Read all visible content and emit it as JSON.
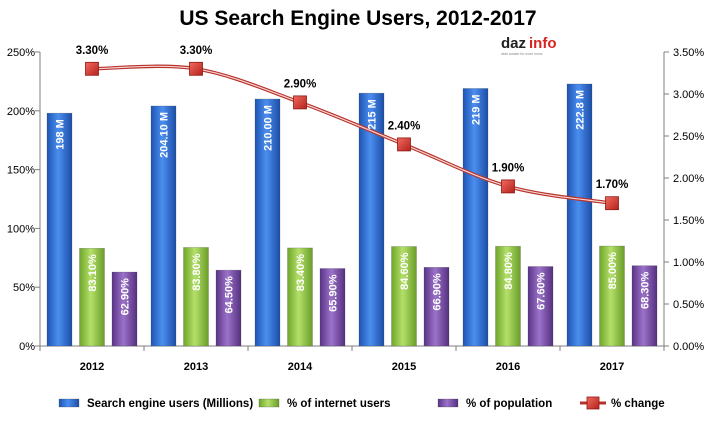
{
  "chart_data": {
    "type": "bar",
    "title": "US Search Engine Users, 2012-2017",
    "categories": [
      "2012",
      "2013",
      "2014",
      "2015",
      "2016",
      "2017"
    ],
    "series": [
      {
        "name": "Search engine users (Millions)",
        "axis": "left",
        "values": [
          198,
          204.1,
          210.0,
          215,
          219,
          222.8
        ],
        "labels": [
          "198 M",
          "204.10 M",
          "210.00 M",
          "215 M",
          "219 M",
          "222.8 M"
        ],
        "color": "#2e6fd0"
      },
      {
        "name": "% of internet users",
        "axis": "left",
        "values": [
          83.1,
          83.8,
          83.4,
          84.6,
          84.8,
          85.0
        ],
        "labels": [
          "83.10%",
          "83.80%",
          "83.40%",
          "84.60%",
          "84.80%",
          "85.00%"
        ],
        "color": "#8cc43c"
      },
      {
        "name": "% of population",
        "axis": "left",
        "values": [
          62.9,
          64.5,
          65.9,
          66.9,
          67.6,
          68.3
        ],
        "labels": [
          "62.90%",
          "64.50%",
          "65.90%",
          "66.90%",
          "67.60%",
          "68.30%"
        ],
        "color": "#7a4fa8"
      }
    ],
    "line_series": {
      "name": "% change",
      "axis": "right",
      "type": "line",
      "values": [
        3.3,
        3.3,
        2.9,
        2.4,
        1.9,
        1.7
      ],
      "labels": [
        "3.30%",
        "3.30%",
        "2.90%",
        "2.40%",
        "1.90%",
        "1.70%"
      ],
      "color": "#d9322e"
    },
    "y_left": {
      "ylim": [
        0,
        250
      ],
      "ticks": [
        0,
        50,
        100,
        150,
        200,
        250
      ],
      "tick_labels": [
        "0%",
        "50%",
        "100%",
        "150%",
        "200%",
        "250%"
      ]
    },
    "y_right": {
      "ylim": [
        0,
        3.5
      ],
      "ticks": [
        0,
        0.5,
        1.0,
        1.5,
        2.0,
        2.5,
        3.0,
        3.5
      ],
      "tick_labels": [
        "0.00%",
        "0.50%",
        "1.00%",
        "1.50%",
        "2.00%",
        "2.50%",
        "3.00%",
        "3.50%"
      ]
    },
    "grid": false,
    "legend_position": "bottom"
  },
  "logo": {
    "text_main": "daz",
    "text_accent": "info",
    "tagline": "wide awake for more news"
  }
}
